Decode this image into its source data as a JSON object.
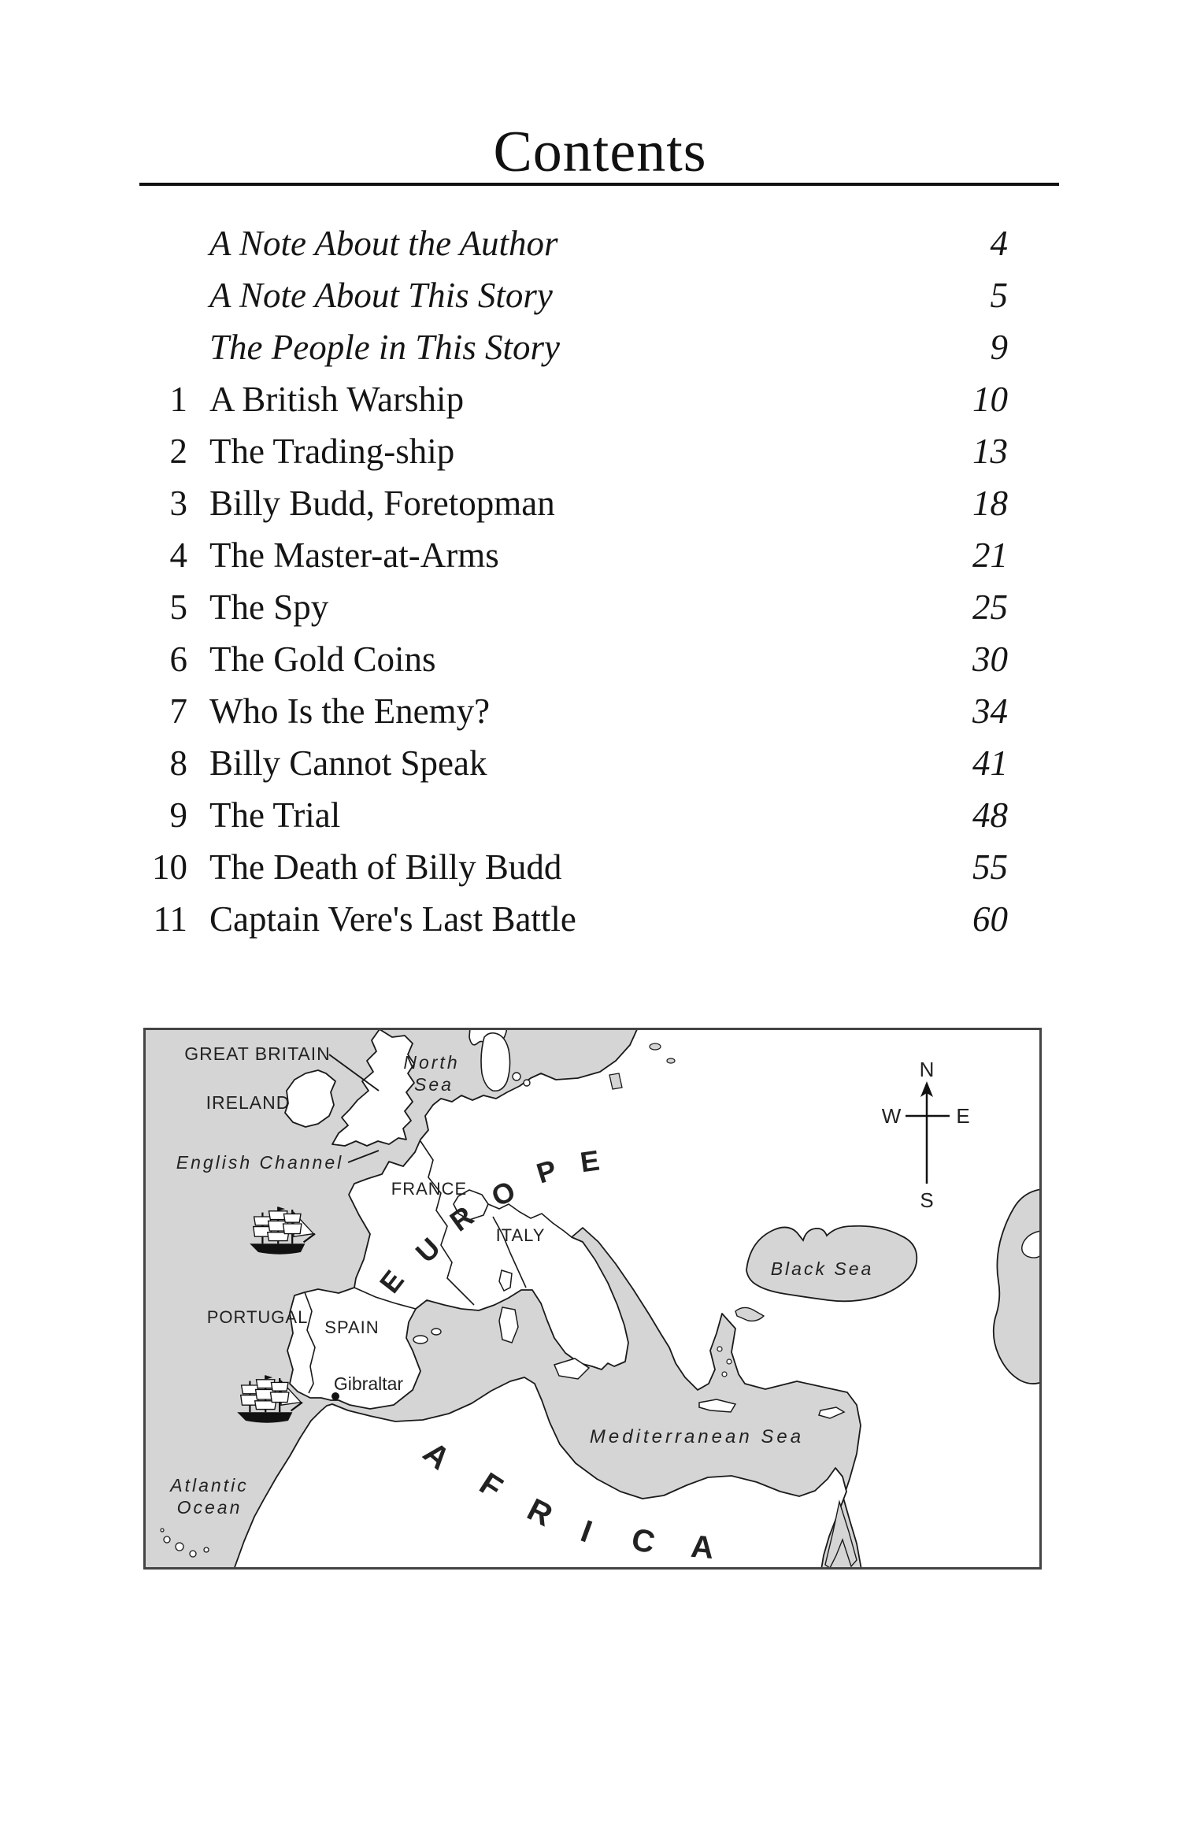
{
  "page": {
    "title": "Contents"
  },
  "toc": [
    {
      "num": "",
      "title": "A Note About the Author",
      "page": "4",
      "front": true
    },
    {
      "num": "",
      "title": "A Note About This Story",
      "page": "5",
      "front": true
    },
    {
      "num": "",
      "title": "The People in This Story",
      "page": "9",
      "front": true
    },
    {
      "num": "1",
      "title": "A British Warship",
      "page": "10",
      "front": false
    },
    {
      "num": "2",
      "title": "The Trading-ship",
      "page": "13",
      "front": false
    },
    {
      "num": "3",
      "title": "Billy Budd, Foretopman",
      "page": "18",
      "front": false
    },
    {
      "num": "4",
      "title": "The Master-at-Arms",
      "page": "21",
      "front": false
    },
    {
      "num": "5",
      "title": "The Spy",
      "page": "25",
      "front": false
    },
    {
      "num": "6",
      "title": "The Gold Coins",
      "page": "30",
      "front": false
    },
    {
      "num": "7",
      "title": "Who Is the Enemy?",
      "page": "34",
      "front": false
    },
    {
      "num": "8",
      "title": "Billy Cannot Speak",
      "page": "41",
      "front": false
    },
    {
      "num": "9",
      "title": "The Trial",
      "page": "48",
      "front": false
    },
    {
      "num": "10",
      "title": "The Death of Billy Budd",
      "page": "55",
      "front": false
    },
    {
      "num": "11",
      "title": "Captain Vere's Last Battle",
      "page": "60",
      "front": false
    }
  ],
  "map": {
    "labels": {
      "great_britain": "GREAT BRITAIN",
      "ireland": "IRELAND",
      "north_sea_1": "North",
      "north_sea_2": "Sea",
      "english_channel": "English Channel",
      "france": "FRANCE",
      "italy": "ITALY",
      "portugal": "PORTUGAL",
      "spain": "SPAIN",
      "gibraltar": "Gibraltar",
      "black_sea": "Black Sea",
      "mediterranean_sea": "Mediterranean Sea",
      "atlantic_1": "Atlantic",
      "atlantic_2": "Ocean"
    },
    "europe": [
      "E",
      "U",
      "R",
      "O",
      "P",
      "E"
    ],
    "africa": [
      "A",
      "F",
      "R",
      "I",
      "C",
      "A"
    ],
    "compass": {
      "n": "N",
      "e": "E",
      "s": "S",
      "w": "W"
    },
    "colors": {
      "sea": "#d5d5d5",
      "land": "#ffffff",
      "coast": "#1a1a1a",
      "frame": "#444444"
    }
  }
}
